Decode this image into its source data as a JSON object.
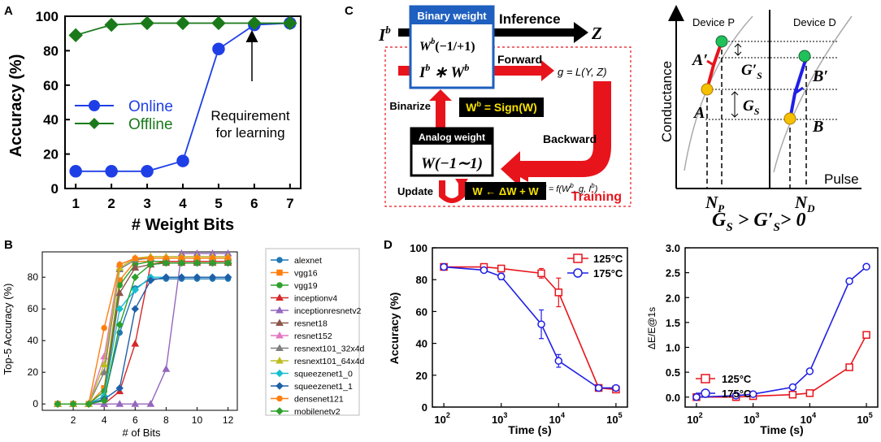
{
  "panel_labels": [
    "A",
    "B",
    "C",
    "D"
  ],
  "chart_data": [
    {
      "id": "A",
      "type": "line",
      "xlabel": "# Weight Bits",
      "ylabel": "Accuracy (%)",
      "xlim": [
        0.7,
        7.3
      ],
      "ylim": [
        0,
        100
      ],
      "xticks": [
        1,
        2,
        3,
        4,
        5,
        6,
        7
      ],
      "yticks": [
        0,
        20,
        40,
        60,
        80,
        100
      ],
      "series": [
        {
          "name": "Online",
          "color": "#1f3fe6",
          "marker": "circle",
          "x": [
            1,
            2,
            3,
            4,
            5,
            6,
            7
          ],
          "y": [
            10,
            10,
            10,
            16,
            81,
            95,
            96
          ]
        },
        {
          "name": "Offline",
          "color": "#1a7a1a",
          "marker": "diamond",
          "x": [
            1,
            2,
            3,
            4,
            5,
            6,
            7
          ],
          "y": [
            89,
            95,
            96,
            96,
            96,
            96,
            96
          ]
        }
      ],
      "annotation": {
        "text_line1": "Requirement",
        "text_line2": "for learning",
        "x": 6,
        "y": 95
      }
    },
    {
      "id": "B",
      "type": "line",
      "xlabel": "# of Bits",
      "ylabel": "Top-5 Accuracy (%)",
      "xlim": [
        0,
        12.6
      ],
      "ylim": [
        -4,
        96
      ],
      "xticks": [
        2,
        4,
        6,
        8,
        10,
        12
      ],
      "yticks": [
        0,
        20,
        40,
        60,
        80
      ],
      "x": [
        1,
        2,
        3,
        4,
        5,
        6,
        7,
        8,
        9,
        10,
        11,
        12
      ],
      "series": [
        {
          "name": "alexnet",
          "color": "#1f77b4",
          "marker": "circle",
          "y": [
            0,
            0,
            0,
            3,
            45,
            73,
            79,
            79,
            79,
            79,
            79,
            79
          ]
        },
        {
          "name": "vgg16",
          "color": "#ff7f0e",
          "marker": "square",
          "y": [
            0,
            0,
            0,
            10,
            78,
            90,
            90,
            90,
            90,
            90,
            90,
            90
          ]
        },
        {
          "name": "vgg19",
          "color": "#2ca02c",
          "marker": "circle",
          "y": [
            0,
            0,
            0,
            8,
            75,
            88,
            90,
            90,
            90,
            90,
            90,
            90
          ]
        },
        {
          "name": "inceptionv4",
          "color": "#d62728",
          "marker": "triangle",
          "y": [
            0,
            0,
            0,
            0,
            8,
            38,
            88,
            90,
            90,
            90,
            90,
            90
          ]
        },
        {
          "name": "inceptionresnetv2",
          "color": "#9467bd",
          "marker": "triangle",
          "y": [
            0,
            0,
            0,
            0,
            0,
            0,
            0,
            22,
            95,
            95,
            95,
            95
          ]
        },
        {
          "name": "resnet18",
          "color": "#8c564b",
          "marker": "triangle",
          "y": [
            0,
            0,
            0,
            5,
            70,
            86,
            88,
            89,
            89,
            89,
            89,
            89
          ]
        },
        {
          "name": "resnet152",
          "color": "#e377c2",
          "marker": "triangle",
          "y": [
            0,
            0,
            0,
            30,
            88,
            92,
            93,
            93,
            93,
            93,
            93,
            93
          ]
        },
        {
          "name": "resnext101_32x4d",
          "color": "#7f7f7f",
          "marker": "triangle",
          "y": [
            0,
            0,
            0,
            20,
            85,
            91,
            92,
            92,
            92,
            92,
            92,
            92
          ]
        },
        {
          "name": "resnext101_64x4d",
          "color": "#bcbd22",
          "marker": "triangle",
          "y": [
            0,
            0,
            0,
            25,
            86,
            92,
            93,
            93,
            93,
            93,
            93,
            93
          ]
        },
        {
          "name": "squeezenet1_0",
          "color": "#17becf",
          "marker": "diamond",
          "y": [
            0,
            0,
            0,
            5,
            60,
            72,
            80,
            80,
            80,
            80,
            80,
            80
          ]
        },
        {
          "name": "squeezenet1_1",
          "color": "#1f5fa8",
          "marker": "diamond",
          "y": [
            0,
            0,
            0,
            3,
            10,
            60,
            78,
            80,
            80,
            80,
            80,
            80
          ]
        },
        {
          "name": "densenet121",
          "color": "#ff7f0e",
          "marker": "circle",
          "y": [
            0,
            0,
            0,
            48,
            88,
            92,
            92,
            92,
            92,
            92,
            92,
            92
          ]
        },
        {
          "name": "mobilenetv2",
          "color": "#2ca02c",
          "marker": "diamond",
          "y": [
            0,
            0,
            0,
            2,
            50,
            80,
            88,
            89,
            89,
            89,
            89,
            89
          ]
        }
      ]
    },
    {
      "id": "D-left",
      "type": "line",
      "xlabel": "Time (s)",
      "ylabel": "Accuracy (%)",
      "xscale": "log",
      "xlim_exp": [
        1.8,
        5.2
      ],
      "ylim": [
        0,
        100
      ],
      "xtick_base": "10",
      "xtick_exps": [
        "2",
        "3",
        "4",
        "5"
      ],
      "yticks": [
        0,
        20,
        40,
        60,
        80,
        100
      ],
      "series": [
        {
          "name": "125°C",
          "color": "#e8141b",
          "marker": "square",
          "x": [
            100,
            500,
            1000,
            5000,
            10000,
            50000,
            100000
          ],
          "y": [
            88,
            88,
            87,
            84,
            72,
            12,
            11
          ],
          "err": [
            0,
            1,
            1,
            3,
            9,
            1,
            1
          ]
        },
        {
          "name": "175°C",
          "color": "#1f1fe6",
          "marker": "circle",
          "x": [
            100,
            500,
            1000,
            5000,
            10000,
            50000,
            100000
          ],
          "y": [
            88,
            86,
            82,
            52,
            29,
            12,
            12
          ],
          "err": [
            0,
            1,
            2,
            9,
            4,
            1,
            1
          ]
        }
      ]
    },
    {
      "id": "D-right",
      "type": "line",
      "xlabel": "Time (s)",
      "ylabel": "ΔE/E@1s",
      "xscale": "log",
      "xlim_exp": [
        1.8,
        5.2
      ],
      "ylim": [
        -0.2,
        3.0
      ],
      "xtick_base": "10",
      "xtick_exps": [
        "2",
        "3",
        "4",
        "5"
      ],
      "yticks": [
        "0.0",
        "0.5",
        "1.0",
        "1.5",
        "2.0",
        "2.5",
        "3.0"
      ],
      "series": [
        {
          "name": "125°C",
          "color": "#e8141b",
          "marker": "square",
          "x": [
            100,
            500,
            1000,
            5000,
            10000,
            50000,
            100000
          ],
          "y": [
            0,
            0,
            0.02,
            0.05,
            0.08,
            0.6,
            1.25
          ]
        },
        {
          "name": "175°C",
          "color": "#1f1fe6",
          "marker": "circle",
          "x": [
            100,
            500,
            1000,
            5000,
            10000,
            50000,
            100000
          ],
          "y": [
            0,
            0.03,
            0.06,
            0.2,
            0.52,
            2.33,
            2.62
          ]
        }
      ]
    }
  ],
  "diagram": {
    "ib": "I",
    "ib_sup": "b",
    "z": "Z",
    "inference": "Inference",
    "binary_weight_title": "Binary weight",
    "binary_weight_value": "W",
    "binary_weight_value_sup": "b",
    "binary_weight_range": "(−1/+1)",
    "ib_times_wb": "I",
    "ib_times_wb_sup": "b",
    "ib_times_wb_mid": " ∗ W",
    "ib_times_wb_sup2": "b",
    "forward": "Forward",
    "g_eq": "g = L(Y, Z)",
    "binarize": "Binarize",
    "sign_eq": "W",
    "sign_eq_sup": "b",
    "sign_eq_rest": " = Sign(W)",
    "analog_weight_title": "Analog weight",
    "analog_weight_value": "W(−1∼1)",
    "backward": "Backward",
    "delta_w": "ΔW = f(W",
    "delta_w_sup": "b",
    "delta_w_rest": ", g, I",
    "delta_w_sup2": "b",
    "delta_w_end": ")",
    "update": "Update",
    "update_eq": "W ← ΔW + W",
    "training": "Training"
  },
  "device": {
    "device_p": "Device P",
    "device_d": "Device D",
    "conductance": "Conductance",
    "pulse": "Pulse",
    "a_prime": "A′",
    "a": "A",
    "b_prime": "B′",
    "b": "B",
    "gs_prime": "G′",
    "gs_prime_sub": "S",
    "gs": "G",
    "gs_sub": "S",
    "np": "N",
    "np_sub": "P",
    "nd": "N",
    "nd_sub": "D",
    "inequality": "G",
    "ineq_sub1": "S",
    "ineq_mid": " > G′",
    "ineq_sub2": "S",
    "ineq_end": "> 0"
  }
}
